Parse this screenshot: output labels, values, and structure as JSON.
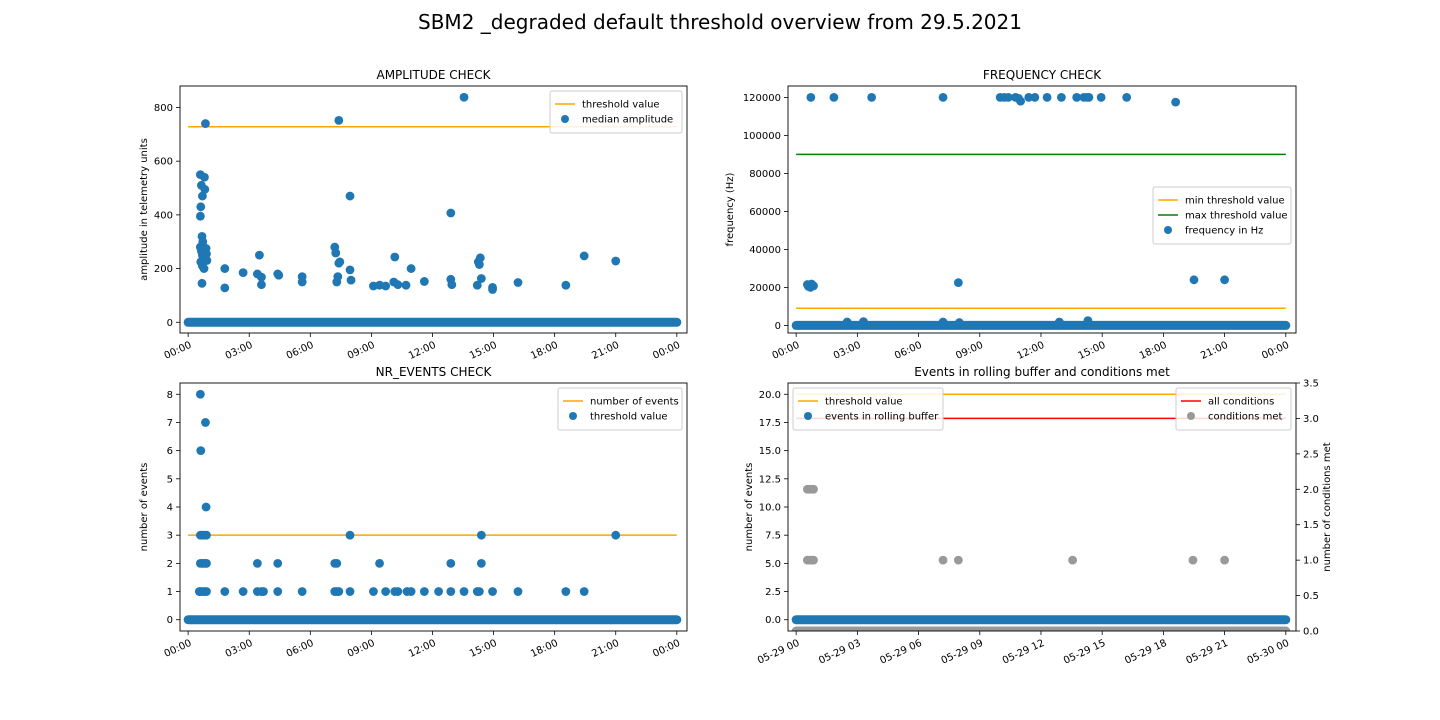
{
  "figure": {
    "title": "SBM2 _degraded default threshold overview from 29.5.2021"
  },
  "chart_data": [
    {
      "type": "scatter",
      "title": "AMPLITUDE CHECK",
      "xlabel": "",
      "ylabel": "amplitude in telemetry units",
      "x_ticks": [
        "00:00",
        "03:00",
        "06:00",
        "09:00",
        "12:00",
        "15:00",
        "18:00",
        "21:00",
        "00:00"
      ],
      "y_ticks": [
        "0",
        "200",
        "400",
        "600",
        "800"
      ],
      "xlim": [
        -0.4,
        24.5
      ],
      "ylim": [
        -40,
        880
      ],
      "legend": {
        "position": "top-right",
        "entries": [
          "threshold value",
          "median amplitude"
        ]
      },
      "lines": [
        {
          "name": "threshold value",
          "color": "#ffa500",
          "x": [
            0,
            24
          ],
          "y": [
            728,
            728
          ]
        }
      ],
      "scatter": {
        "name": "median amplitude",
        "color": "#1f77b4",
        "baseline": {
          "x_from": 0,
          "x_to": 24,
          "y": 0
        },
        "points": [
          [
            0.6,
            550
          ],
          [
            0.65,
            510
          ],
          [
            0.7,
            470
          ],
          [
            0.62,
            430
          ],
          [
            0.6,
            395
          ],
          [
            0.68,
            320
          ],
          [
            0.72,
            300
          ],
          [
            0.8,
            540
          ],
          [
            0.82,
            495
          ],
          [
            0.85,
            740
          ],
          [
            0.6,
            280
          ],
          [
            0.65,
            265
          ],
          [
            0.7,
            250
          ],
          [
            0.75,
            240
          ],
          [
            0.8,
            230
          ],
          [
            0.62,
            225
          ],
          [
            0.7,
            210
          ],
          [
            0.78,
            200
          ],
          [
            0.88,
            275
          ],
          [
            0.9,
            255
          ],
          [
            0.92,
            230
          ],
          [
            0.68,
            145
          ],
          [
            1.8,
            200
          ],
          [
            1.8,
            128
          ],
          [
            2.7,
            185
          ],
          [
            3.4,
            180
          ],
          [
            3.5,
            250
          ],
          [
            3.6,
            168
          ],
          [
            3.6,
            140
          ],
          [
            4.4,
            180
          ],
          [
            4.45,
            175
          ],
          [
            5.6,
            170
          ],
          [
            5.6,
            150
          ],
          [
            7.2,
            280
          ],
          [
            7.25,
            258
          ],
          [
            7.3,
            150
          ],
          [
            7.35,
            170
          ],
          [
            7.4,
            220
          ],
          [
            7.45,
            225
          ],
          [
            7.4,
            752
          ],
          [
            7.95,
            470
          ],
          [
            7.95,
            195
          ],
          [
            8.0,
            157
          ],
          [
            9.1,
            135
          ],
          [
            9.4,
            138
          ],
          [
            9.7,
            135
          ],
          [
            10.1,
            150
          ],
          [
            10.15,
            243
          ],
          [
            10.3,
            140
          ],
          [
            10.7,
            138
          ],
          [
            10.95,
            200
          ],
          [
            11.6,
            152
          ],
          [
            12.9,
            407
          ],
          [
            12.9,
            160
          ],
          [
            12.95,
            140
          ],
          [
            13.55,
            838
          ],
          [
            14.2,
            138
          ],
          [
            14.25,
            225
          ],
          [
            14.3,
            215
          ],
          [
            14.35,
            240
          ],
          [
            14.4,
            163
          ],
          [
            14.95,
            130
          ],
          [
            14.95,
            122
          ],
          [
            16.2,
            148
          ],
          [
            18.55,
            138
          ],
          [
            19.45,
            247
          ],
          [
            21.0,
            228
          ]
        ]
      }
    },
    {
      "type": "scatter",
      "title": "FREQUENCY CHECK",
      "xlabel": "",
      "ylabel": "frequency (Hz)",
      "x_ticks": [
        "00:00",
        "03:00",
        "06:00",
        "09:00",
        "12:00",
        "15:00",
        "18:00",
        "21:00",
        "00:00"
      ],
      "y_ticks": [
        "0",
        "20000",
        "40000",
        "60000",
        "80000",
        "100000",
        "120000"
      ],
      "xlim": [
        -0.4,
        24.5
      ],
      "ylim": [
        -4000,
        126000
      ],
      "legend": {
        "position": "center-right",
        "entries": [
          "min threshold value",
          "max threshold value",
          "frequency in Hz"
        ]
      },
      "lines": [
        {
          "name": "min threshold value",
          "color": "#ffa500",
          "x": [
            0,
            24
          ],
          "y": [
            9000,
            9000
          ]
        },
        {
          "name": "max threshold value",
          "color": "#008000",
          "x": [
            0,
            24
          ],
          "y": [
            90000,
            90000
          ]
        }
      ],
      "scatter": {
        "name": "frequency in Hz",
        "color": "#1f77b4",
        "baseline": {
          "x_from": 0,
          "x_to": 24,
          "y": 0
        },
        "points": [
          [
            0.55,
            21500
          ],
          [
            0.6,
            20500
          ],
          [
            0.65,
            21000
          ],
          [
            0.7,
            20000
          ],
          [
            0.75,
            21800
          ],
          [
            0.8,
            21200
          ],
          [
            0.85,
            20800
          ],
          [
            0.72,
            120000
          ],
          [
            1.85,
            120000
          ],
          [
            3.7,
            120000
          ],
          [
            7.2,
            120000
          ],
          [
            10.0,
            120000
          ],
          [
            10.2,
            120000
          ],
          [
            10.4,
            120000
          ],
          [
            10.75,
            120000
          ],
          [
            10.9,
            119500
          ],
          [
            11.0,
            118000
          ],
          [
            11.4,
            120000
          ],
          [
            11.7,
            120000
          ],
          [
            12.3,
            120000
          ],
          [
            13.0,
            120000
          ],
          [
            13.75,
            120000
          ],
          [
            14.1,
            120000
          ],
          [
            14.25,
            120000
          ],
          [
            14.35,
            120000
          ],
          [
            14.95,
            120000
          ],
          [
            16.2,
            120000
          ],
          [
            18.6,
            117500
          ],
          [
            7.95,
            22500
          ],
          [
            19.5,
            24000
          ],
          [
            21.0,
            24000
          ],
          [
            2.5,
            1800
          ],
          [
            3.3,
            2000
          ],
          [
            7.2,
            1800
          ],
          [
            8.0,
            1500
          ],
          [
            12.9,
            1800
          ],
          [
            14.3,
            2500
          ]
        ]
      }
    },
    {
      "type": "scatter",
      "title": "NR_EVENTS CHECK",
      "xlabel": "",
      "ylabel": "number of events",
      "x_ticks": [
        "00:00",
        "03:00",
        "06:00",
        "09:00",
        "12:00",
        "15:00",
        "18:00",
        "21:00",
        "00:00"
      ],
      "y_ticks": [
        "0",
        "1",
        "2",
        "3",
        "4",
        "5",
        "6",
        "7",
        "8"
      ],
      "xlim": [
        -0.4,
        24.5
      ],
      "ylim": [
        -0.4,
        8.4
      ],
      "legend": {
        "position": "top-right",
        "entries": [
          "number of events",
          "threshold value"
        ]
      },
      "lines": [
        {
          "name": "number of events",
          "color": "#ffa500",
          "x": [
            0,
            24
          ],
          "y": [
            3,
            3
          ]
        }
      ],
      "scatter": {
        "name": "threshold value",
        "color": "#1f77b4",
        "baseline": {
          "x_from": 0,
          "x_to": 24,
          "y": 0
        },
        "points": [
          [
            0.6,
            8
          ],
          [
            0.62,
            6
          ],
          [
            0.85,
            7
          ],
          [
            0.88,
            4
          ],
          [
            0.6,
            3
          ],
          [
            0.7,
            3
          ],
          [
            0.8,
            3
          ],
          [
            0.9,
            3
          ],
          [
            0.6,
            2
          ],
          [
            0.7,
            2
          ],
          [
            0.75,
            2
          ],
          [
            0.85,
            2
          ],
          [
            0.9,
            2
          ],
          [
            0.55,
            1
          ],
          [
            0.6,
            1
          ],
          [
            0.7,
            1
          ],
          [
            0.8,
            1
          ],
          [
            0.9,
            1
          ],
          [
            1.8,
            1
          ],
          [
            2.7,
            1
          ],
          [
            3.4,
            2
          ],
          [
            3.4,
            1
          ],
          [
            3.6,
            1
          ],
          [
            3.7,
            1
          ],
          [
            4.4,
            2
          ],
          [
            4.4,
            1
          ],
          [
            5.6,
            1
          ],
          [
            7.2,
            2
          ],
          [
            7.3,
            2
          ],
          [
            7.2,
            1
          ],
          [
            7.3,
            1
          ],
          [
            7.4,
            1
          ],
          [
            7.95,
            3
          ],
          [
            7.95,
            1
          ],
          [
            9.1,
            1
          ],
          [
            9.4,
            2
          ],
          [
            9.7,
            1
          ],
          [
            10.15,
            1
          ],
          [
            10.3,
            1
          ],
          [
            10.75,
            1
          ],
          [
            10.95,
            1
          ],
          [
            11.6,
            1
          ],
          [
            12.3,
            1
          ],
          [
            12.9,
            2
          ],
          [
            12.9,
            1
          ],
          [
            13.55,
            1
          ],
          [
            14.2,
            1
          ],
          [
            14.3,
            1
          ],
          [
            14.4,
            3
          ],
          [
            14.4,
            2
          ],
          [
            14.95,
            1
          ],
          [
            16.2,
            1
          ],
          [
            18.55,
            1
          ],
          [
            19.45,
            1
          ],
          [
            21.0,
            3
          ]
        ]
      }
    },
    {
      "type": "scatter",
      "title": "Events in rolling buffer and conditions met",
      "xlabel": "",
      "ylabel": "number of events",
      "ylabel_right": "number of conditions met",
      "x_ticks": [
        "05-29 00",
        "05-29 03",
        "05-29 06",
        "05-29 09",
        "05-29 12",
        "05-29 15",
        "05-29 18",
        "05-29 21",
        "05-30 00"
      ],
      "y_ticks": [
        "0.0",
        "2.5",
        "5.0",
        "7.5",
        "10.0",
        "12.5",
        "15.0",
        "17.5",
        "20.0"
      ],
      "y_ticks_right": [
        "0.0",
        "0.5",
        "1.0",
        "1.5",
        "2.0",
        "2.5",
        "3.0",
        "3.5"
      ],
      "xlim": [
        -0.4,
        24.5
      ],
      "ylim": [
        -1.0,
        21.0
      ],
      "ylim_right": [
        0,
        3.5
      ],
      "legend_left": {
        "position": "top-left",
        "entries": [
          "threshold value",
          "events in rolling buffer"
        ]
      },
      "legend_right": {
        "position": "top-right",
        "entries": [
          "all conditions",
          "conditions met"
        ]
      },
      "lines": [
        {
          "name": "threshold value",
          "color": "#ffa500",
          "axis": "left",
          "x": [
            0,
            24
          ],
          "y": [
            20,
            20
          ]
        },
        {
          "name": "all conditions",
          "color": "#ff0000",
          "axis": "right",
          "x": [
            0,
            24
          ],
          "y": [
            3,
            3
          ]
        }
      ],
      "scatter": {
        "name": "events in rolling buffer",
        "color": "#1f77b4",
        "axis": "left",
        "baseline": {
          "x_from": 0,
          "x_to": 24,
          "y": 0
        },
        "points": []
      },
      "scatter_right": {
        "name": "conditions met",
        "color": "#999999",
        "axis": "right",
        "baseline": {
          "x_from": 0,
          "x_to": 24,
          "y": 0
        },
        "points": [
          [
            0.55,
            2
          ],
          [
            0.65,
            2
          ],
          [
            0.75,
            2
          ],
          [
            0.85,
            2
          ],
          [
            0.55,
            1
          ],
          [
            0.65,
            1
          ],
          [
            0.75,
            1
          ],
          [
            0.85,
            1
          ],
          [
            7.2,
            1
          ],
          [
            7.95,
            1
          ],
          [
            13.55,
            1
          ],
          [
            19.45,
            1
          ],
          [
            21.0,
            1
          ]
        ]
      }
    }
  ]
}
